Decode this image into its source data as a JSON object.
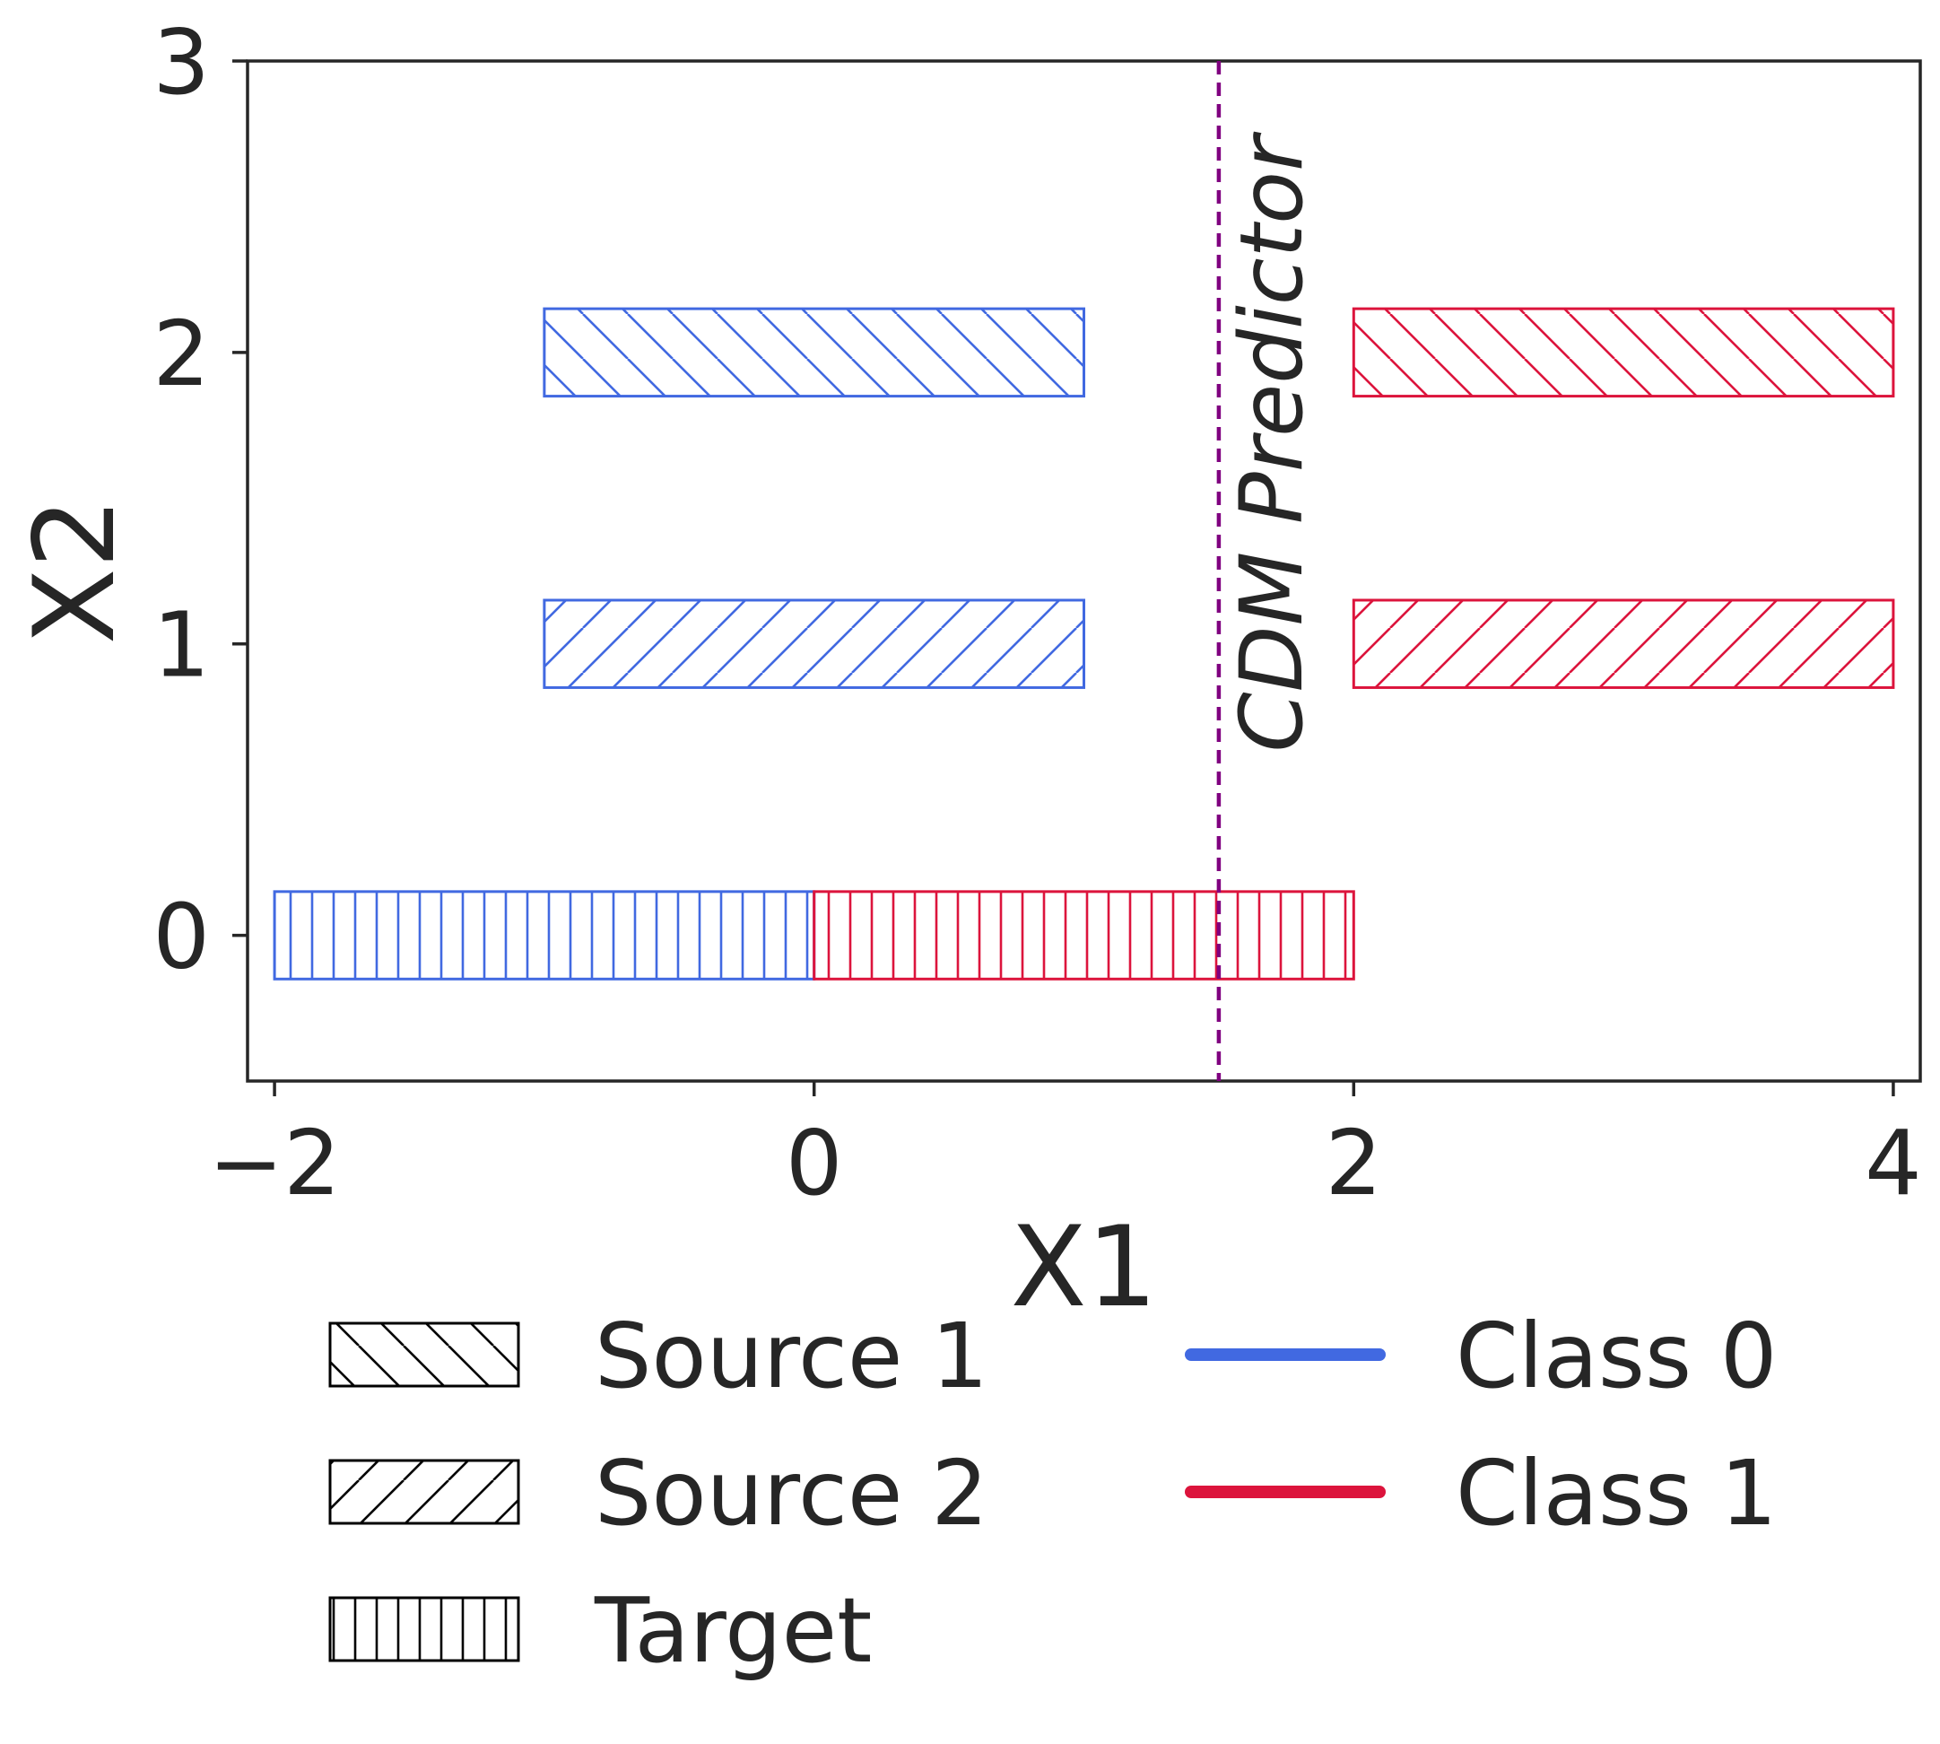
{
  "chart_data": {
    "type": "bar",
    "orientation": "horizontal-intervals",
    "xlabel": "X1",
    "ylabel": "X2",
    "xlim": [
      -2.1,
      4.1
    ],
    "ylim": [
      -0.5,
      3
    ],
    "xticks": [
      -2,
      0,
      2,
      4
    ],
    "xtick_labels": [
      "−2",
      "0",
      "2",
      "4"
    ],
    "yticks": [
      0,
      1,
      2,
      3
    ],
    "ytick_labels": [
      "0",
      "1",
      "2",
      "3"
    ],
    "grid": false,
    "bar_height": 0.3,
    "series": [
      {
        "domain": "Source 1",
        "class": "Class 0",
        "y": 2,
        "x_start": -1,
        "x_end": 1,
        "hatch": "back-diagonal"
      },
      {
        "domain": "Source 1",
        "class": "Class 1",
        "y": 2,
        "x_start": 2,
        "x_end": 4,
        "hatch": "back-diagonal"
      },
      {
        "domain": "Source 2",
        "class": "Class 0",
        "y": 1,
        "x_start": -1,
        "x_end": 1,
        "hatch": "forward-diagonal"
      },
      {
        "domain": "Source 2",
        "class": "Class 1",
        "y": 1,
        "x_start": 2,
        "x_end": 4,
        "hatch": "forward-diagonal"
      },
      {
        "domain": "Target",
        "class": "Class 0",
        "y": 0,
        "x_start": -2,
        "x_end": 0,
        "hatch": "vertical"
      },
      {
        "domain": "Target",
        "class": "Class 1",
        "y": 0,
        "x_start": 0,
        "x_end": 2,
        "hatch": "vertical"
      }
    ],
    "annotations": [
      {
        "type": "vline",
        "x": 1.5,
        "style": "dashed",
        "color": "#800080",
        "label": "CDM Predictor"
      }
    ],
    "legend": {
      "placement": "bottom",
      "hatch_entries": [
        {
          "label": "Source 1",
          "hatch": "back-diagonal"
        },
        {
          "label": "Source 2",
          "hatch": "forward-diagonal"
        },
        {
          "label": "Target",
          "hatch": "vertical"
        }
      ],
      "color_entries": [
        {
          "label": "Class 0",
          "color": "#4169E1"
        },
        {
          "label": "Class 1",
          "color": "#DC143C"
        }
      ]
    },
    "colors": {
      "Class 0": "#4169E1",
      "Class 1": "#DC143C",
      "axis": "#262626"
    }
  }
}
